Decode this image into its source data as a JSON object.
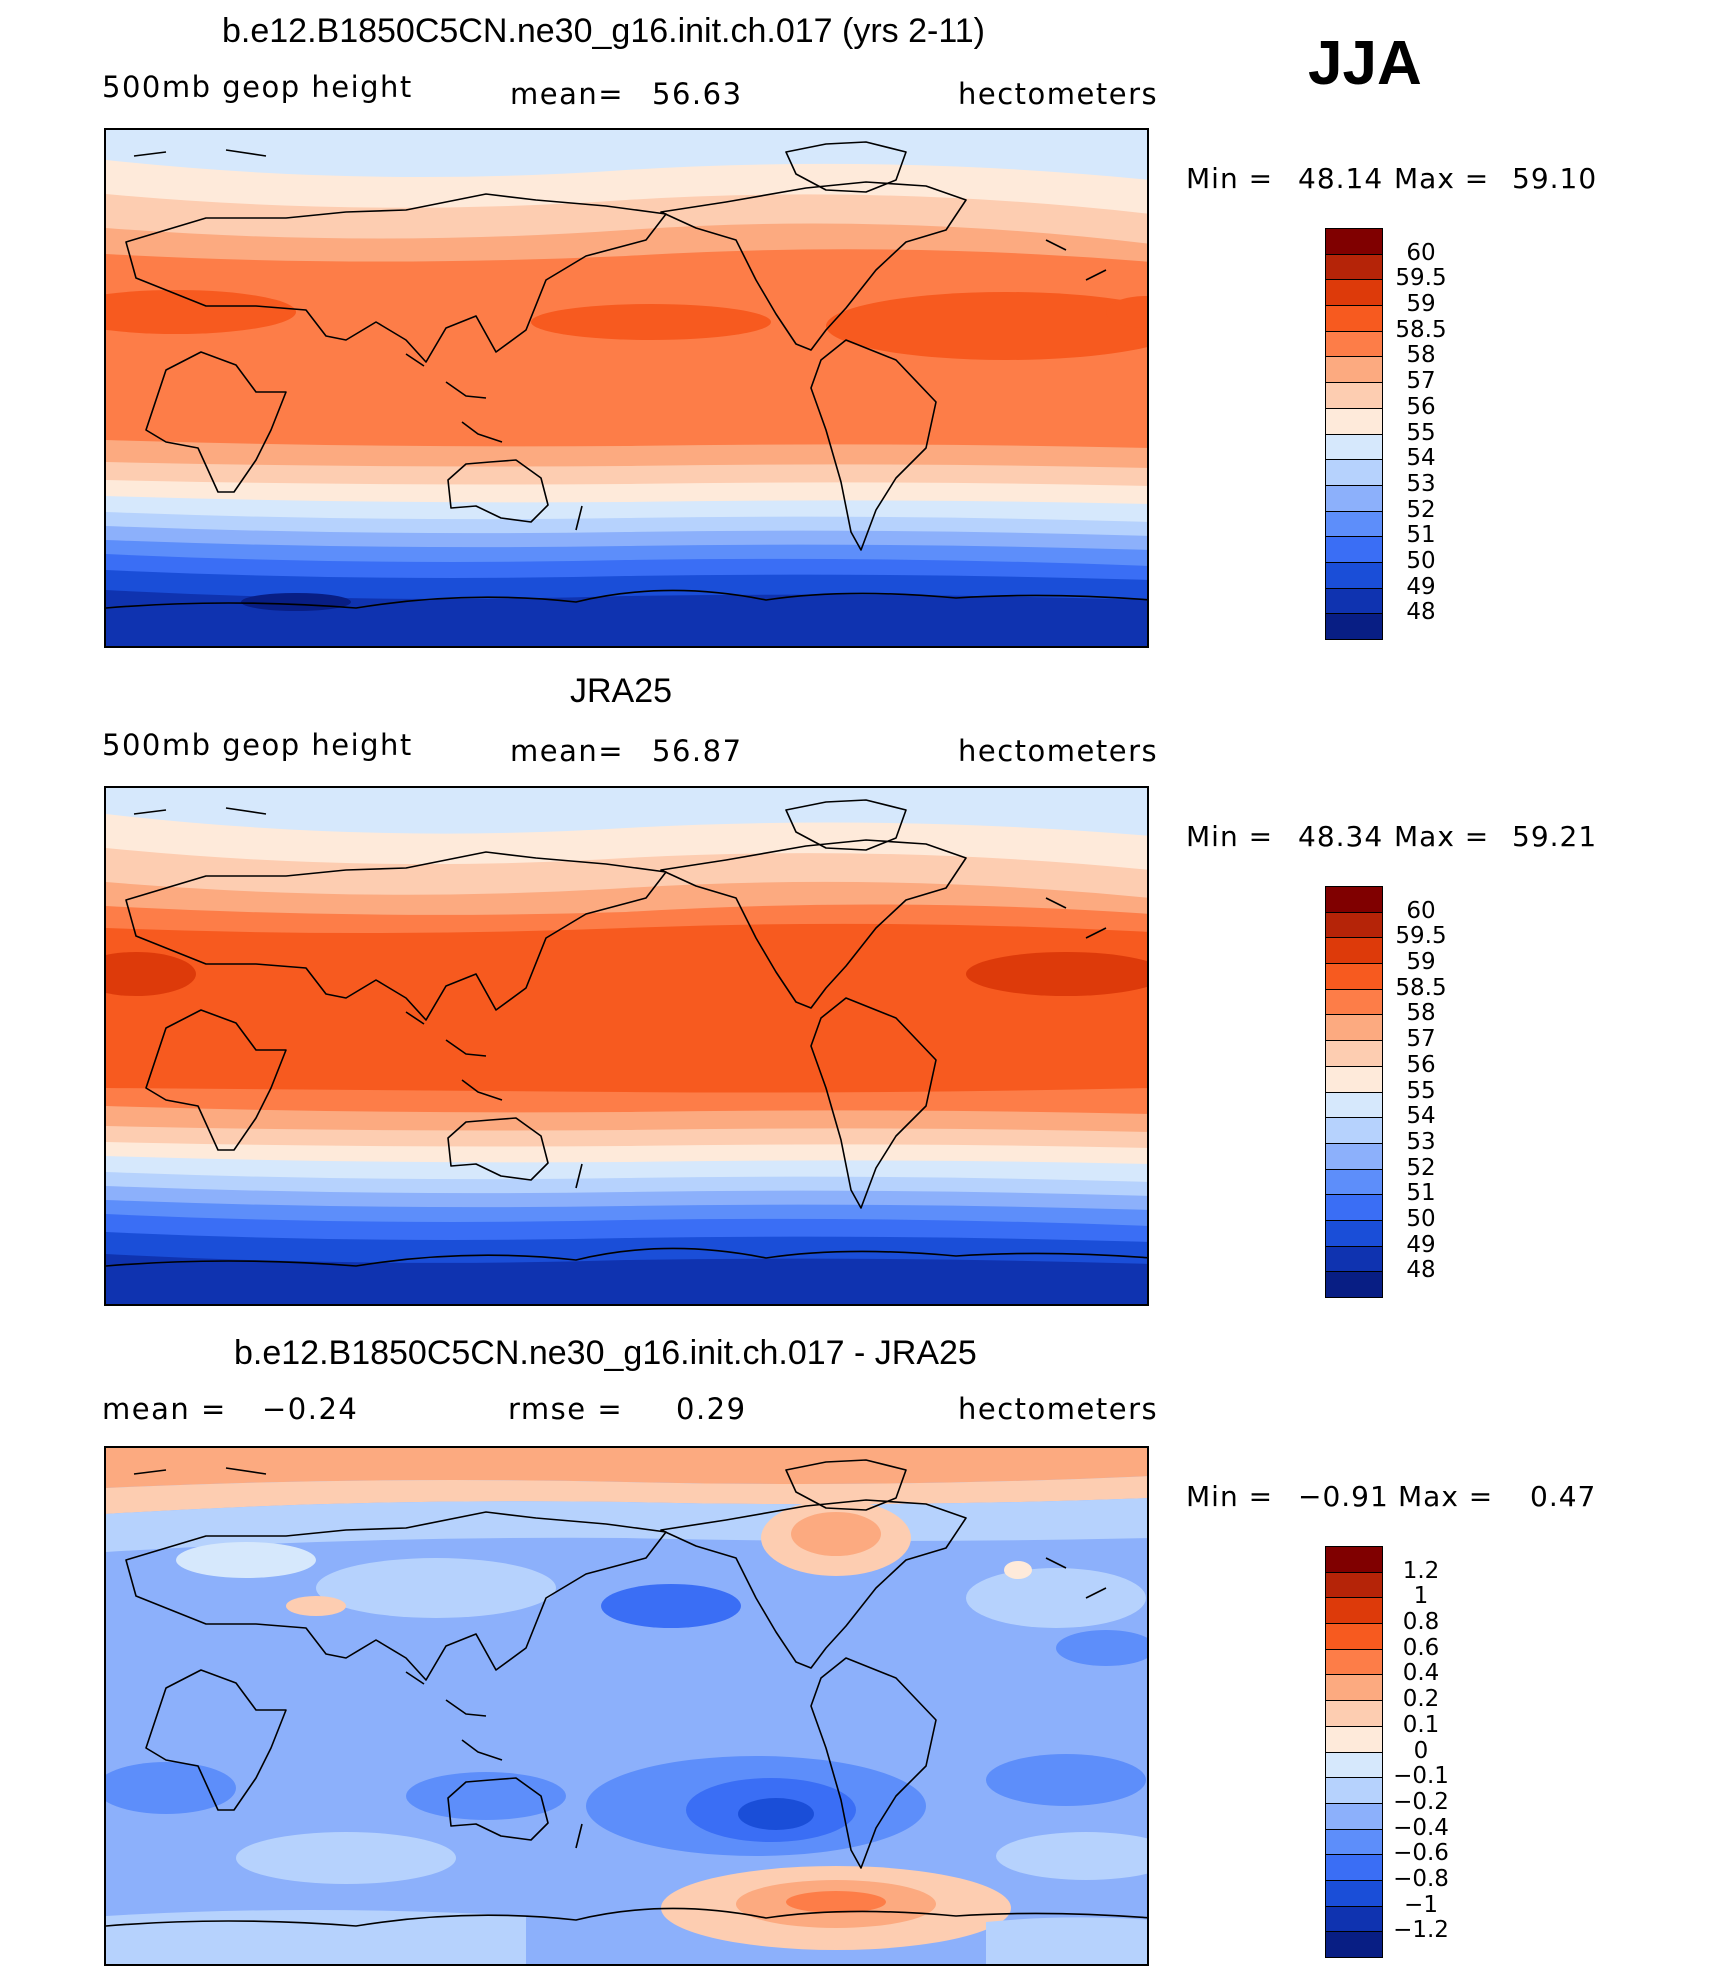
{
  "season": "JJA",
  "panels": [
    {
      "title": "b.e12.B1850C5CN.ne30_g16.init.ch.017 (yrs 2-11)",
      "left_label": "500mb geop height",
      "center_label": "mean=",
      "center_value": "56.63",
      "right_label": "hectometers",
      "minmax": {
        "min_label": "Min =",
        "min": "48.14",
        "max_label": "Max =",
        "max": "59.10"
      },
      "colorbar": {
        "labels": [
          "60",
          "59.5",
          "59",
          "58.5",
          "58",
          "57",
          "56",
          "55",
          "54",
          "53",
          "52",
          "51",
          "50",
          "49",
          "48"
        ],
        "colors": [
          "#800000",
          "#b52408",
          "#dd3a0a",
          "#f75a1f",
          "#fd7d48",
          "#fcaa80",
          "#fdcdb1",
          "#feeada",
          "#d6e8fc",
          "#b6d2fd",
          "#8cb0fb",
          "#5d8efa",
          "#3a6ef5",
          "#1a4ed8",
          "#0f33b0",
          "#081e84"
        ]
      },
      "chart_data": {
        "type": "heatmap",
        "title": "b.e12.B1850C5CN.ne30_g16.init.ch.017 (yrs 2-11)",
        "variable": "500mb geop height",
        "units": "hectometers",
        "mean": 56.63,
        "min": 48.14,
        "max": 59.1,
        "levels": [
          48,
          49,
          50,
          51,
          52,
          53,
          54,
          55,
          56,
          57,
          58,
          58.5,
          59,
          59.5,
          60
        ]
      }
    },
    {
      "title": "JRA25",
      "left_label": "500mb geop height",
      "center_label": "mean=",
      "center_value": "56.87",
      "right_label": "hectometers",
      "minmax": {
        "min_label": "Min =",
        "min": "48.34",
        "max_label": "Max =",
        "max": "59.21"
      },
      "colorbar": {
        "labels": [
          "60",
          "59.5",
          "59",
          "58.5",
          "58",
          "57",
          "56",
          "55",
          "54",
          "53",
          "52",
          "51",
          "50",
          "49",
          "48"
        ],
        "colors": [
          "#800000",
          "#b52408",
          "#dd3a0a",
          "#f75a1f",
          "#fd7d48",
          "#fcaa80",
          "#fdcdb1",
          "#feeada",
          "#d6e8fc",
          "#b6d2fd",
          "#8cb0fb",
          "#5d8efa",
          "#3a6ef5",
          "#1a4ed8",
          "#0f33b0",
          "#081e84"
        ]
      },
      "chart_data": {
        "type": "heatmap",
        "title": "JRA25",
        "variable": "500mb geop height",
        "units": "hectometers",
        "mean": 56.87,
        "min": 48.34,
        "max": 59.21,
        "levels": [
          48,
          49,
          50,
          51,
          52,
          53,
          54,
          55,
          56,
          57,
          58,
          58.5,
          59,
          59.5,
          60
        ]
      }
    },
    {
      "title": "b.e12.B1850C5CN.ne30_g16.init.ch.017 - JRA25",
      "left_label": "mean =",
      "left_value": "−0.24",
      "center_label": "rmse =",
      "center_value": "0.29",
      "right_label": "hectometers",
      "minmax": {
        "min_label": "Min =",
        "min": "−0.91",
        "max_label": "Max =",
        "max": "0.47"
      },
      "colorbar": {
        "labels": [
          "1.2",
          "1",
          "0.8",
          "0.6",
          "0.4",
          "0.2",
          "0.1",
          "0",
          "−0.1",
          "−0.2",
          "−0.4",
          "−0.6",
          "−0.8",
          "−1",
          "−1.2"
        ],
        "colors": [
          "#800000",
          "#b52408",
          "#dd3a0a",
          "#f75a1f",
          "#fd7d48",
          "#fcaa80",
          "#fdcdb1",
          "#feeada",
          "#d6e8fc",
          "#b6d2fd",
          "#8cb0fb",
          "#5d8efa",
          "#3a6ef5",
          "#1a4ed8",
          "#0f33b0",
          "#081e84"
        ]
      },
      "chart_data": {
        "type": "heatmap",
        "title": "b.e12.B1850C5CN.ne30_g16.init.ch.017 - JRA25",
        "units": "hectometers",
        "mean": -0.24,
        "rmse": 0.29,
        "min": -0.91,
        "max": 0.47,
        "levels": [
          -1.2,
          -1,
          -0.8,
          -0.6,
          -0.4,
          -0.2,
          -0.1,
          0,
          0.1,
          0.2,
          0.4,
          0.6,
          0.8,
          1,
          1.2
        ]
      }
    }
  ]
}
